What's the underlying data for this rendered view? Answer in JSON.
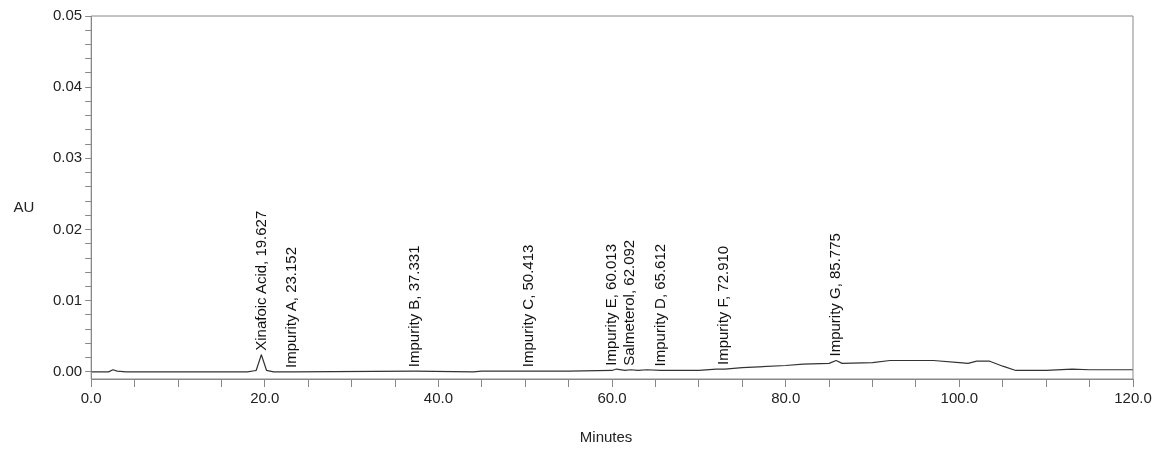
{
  "chart_data": {
    "type": "line",
    "xlabel": "Minutes",
    "ylabel": "AU",
    "color": "#333333",
    "marker": "none",
    "legend": false,
    "grid": false,
    "x": [
      0,
      2,
      2.5,
      3,
      4,
      18,
      19,
      19.6,
      20.2,
      21,
      23.2,
      37.3,
      44,
      45,
      50.4,
      55,
      60,
      60.5,
      61.5,
      62.1,
      63,
      64,
      65.6,
      70,
      72,
      73,
      75,
      80,
      82,
      85,
      85.8,
      86.5,
      90,
      92,
      97,
      100,
      101,
      102,
      103.5,
      105,
      106.5,
      110,
      113,
      115,
      120
    ],
    "values": [
      0,
      0,
      0.0003,
      0.0001,
      0,
      0,
      0.0002,
      0.0024,
      0.0002,
      0,
      0,
      0.0001,
      0,
      0.0001,
      0.0001,
      0.0001,
      0.0002,
      0.0004,
      0.0002,
      0.0003,
      0.0002,
      0.0003,
      0.0002,
      0.0002,
      0.0004,
      0.0004,
      0.0006,
      0.0009,
      0.0011,
      0.0012,
      0.0016,
      0.0012,
      0.0013,
      0.0016,
      0.0016,
      0.0013,
      0.0012,
      0.0015,
      0.0015,
      0.0008,
      0.0002,
      0.0002,
      0.0004,
      0.0003,
      0.0003
    ],
    "xlim": [
      0,
      120
    ],
    "xticks": [
      {
        "value": 0,
        "label": "0.0"
      },
      {
        "value": 5,
        "label": null
      },
      {
        "value": 10,
        "label": null
      },
      {
        "value": 15,
        "label": null
      },
      {
        "value": 20,
        "label": "20.0"
      },
      {
        "value": 25,
        "label": null
      },
      {
        "value": 30,
        "label": null
      },
      {
        "value": 35,
        "label": null
      },
      {
        "value": 40,
        "label": "40.0"
      },
      {
        "value": 45,
        "label": null
      },
      {
        "value": 50,
        "label": null
      },
      {
        "value": 55,
        "label": null
      },
      {
        "value": 60,
        "label": "60.0"
      },
      {
        "value": 65,
        "label": null
      },
      {
        "value": 70,
        "label": null
      },
      {
        "value": 75,
        "label": null
      },
      {
        "value": 80,
        "label": "80.0"
      },
      {
        "value": 85,
        "label": null
      },
      {
        "value": 90,
        "label": null
      },
      {
        "value": 95,
        "label": null
      },
      {
        "value": 100,
        "label": "100.0"
      },
      {
        "value": 105,
        "label": null
      },
      {
        "value": 110,
        "label": null
      },
      {
        "value": 115,
        "label": null
      },
      {
        "value": 120,
        "label": "120.0"
      }
    ],
    "ylim": [
      -0.001,
      0.05
    ],
    "yticks": [
      {
        "value": 0,
        "label": "0.00"
      },
      {
        "value": 0.002,
        "label": null
      },
      {
        "value": 0.004,
        "label": null
      },
      {
        "value": 0.006,
        "label": null
      },
      {
        "value": 0.008,
        "label": null
      },
      {
        "value": 0.01,
        "label": "0.01"
      },
      {
        "value": 0.012,
        "label": null
      },
      {
        "value": 0.014,
        "label": null
      },
      {
        "value": 0.016,
        "label": null
      },
      {
        "value": 0.018,
        "label": null
      },
      {
        "value": 0.02,
        "label": "0.02"
      },
      {
        "value": 0.022,
        "label": null
      },
      {
        "value": 0.024,
        "label": null
      },
      {
        "value": 0.026,
        "label": null
      },
      {
        "value": 0.028,
        "label": null
      },
      {
        "value": 0.03,
        "label": "0.03"
      },
      {
        "value": 0.032,
        "label": null
      },
      {
        "value": 0.034,
        "label": null
      },
      {
        "value": 0.036,
        "label": null
      },
      {
        "value": 0.038,
        "label": null
      },
      {
        "value": 0.04,
        "label": "0.04"
      },
      {
        "value": 0.042,
        "label": null
      },
      {
        "value": 0.044,
        "label": null
      },
      {
        "value": 0.046,
        "label": null
      },
      {
        "value": 0.048,
        "label": null
      },
      {
        "value": 0.05,
        "label": "0.05"
      }
    ],
    "annotations": [
      {
        "text": "Xinafoic Acid, 19.627",
        "x": 19.627,
        "y": 0.0024
      },
      {
        "text": "Impurity A, 23.152",
        "x": 23.152,
        "y": 0
      },
      {
        "text": "Impurity B, 37.331",
        "x": 37.331,
        "y": 0.0001
      },
      {
        "text": "Impurity C, 50.413",
        "x": 50.413,
        "y": 0.0001
      },
      {
        "text": "Impurity E, 60.013",
        "x": 60.013,
        "y": 0.0003
      },
      {
        "text": "Salmeterol, 62.092",
        "x": 62.092,
        "y": 0.0003
      },
      {
        "text": "Impurity D, 65.612",
        "x": 65.612,
        "y": 0.0002
      },
      {
        "text": "Impurity F, 72.910",
        "x": 72.91,
        "y": 0.0004
      },
      {
        "text": "Impurity G, 85.775",
        "x": 85.775,
        "y": 0.0016
      }
    ]
  }
}
